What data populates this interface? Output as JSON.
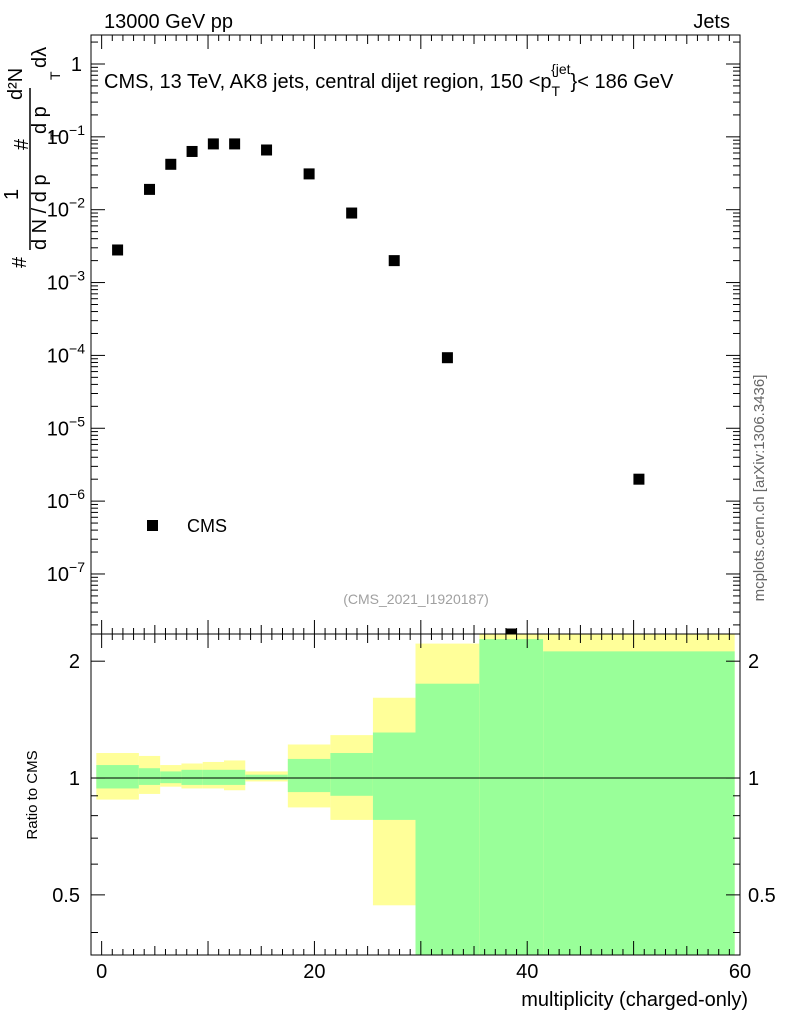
{
  "header": {
    "energy_label": "13000 GeV pp",
    "category_label": "Jets",
    "side_label": "mcplots.cern.ch [arXiv:1306.3436]",
    "analysis_id": "(CMS_2021_I1920187)"
  },
  "chart_data": [
    {
      "type": "scatter",
      "panel": "main",
      "title": "CMS, 13 TeV, AK8 jets, central dijet region, 150 < p_T^{jet} < 186 GeV",
      "title_parts": {
        "prefix": "CMS, 13 TeV, AK8 jets, central dijet region, 150 <p",
        "sub": "T",
        "sup": "{jet",
        "suffix": "}< 186 GeV"
      },
      "ylabel": "1/(dN/dp_T) d²N/(dp_T dλ)",
      "ylabel_parts": {
        "one": "1",
        "hash": "#",
        "den": "d N / d p",
        "num": "d²N",
        "den2": "d p",
        "dlambda": "dλ",
        "T": "T"
      },
      "yscale": "log",
      "ylim": [
        1.5e-08,
        2.5
      ],
      "xlim": [
        -1,
        60
      ],
      "legend": {
        "label": "CMS",
        "placement": "bottom-left"
      },
      "x": [
        1.5,
        4.5,
        6.5,
        8.5,
        10.5,
        12.5,
        15.5,
        19.5,
        23.5,
        27.5,
        32.5,
        38.5,
        50.5
      ],
      "y": [
        0.0028,
        0.019,
        0.042,
        0.063,
        0.08,
        0.08,
        0.066,
        0.031,
        0.009,
        0.002,
        9.3e-05,
        1.2e-08,
        2e-06
      ],
      "ytick_labels": [
        {
          "value": 1,
          "base": "1",
          "exp": ""
        },
        {
          "value": 0.1,
          "base": "10",
          "exp": "−1"
        },
        {
          "value": 0.01,
          "base": "10",
          "exp": "−2"
        },
        {
          "value": 0.001,
          "base": "10",
          "exp": "−3"
        },
        {
          "value": 0.0001,
          "base": "10",
          "exp": "−4"
        },
        {
          "value": 1e-05,
          "base": "10",
          "exp": "−5"
        },
        {
          "value": 1e-06,
          "base": "10",
          "exp": "−6"
        },
        {
          "value": 1e-07,
          "base": "10",
          "exp": "−7"
        }
      ]
    },
    {
      "type": "area",
      "panel": "ratio",
      "ylabel": "Ratio to CMS",
      "xlabel": "multiplicity (charged-only)",
      "xlim": [
        -1,
        60
      ],
      "ylim": [
        0.35,
        2.35
      ],
      "reference_line": 1,
      "ytick_labels": [
        "0.5",
        "1",
        "2"
      ],
      "ytick_values": [
        0.5,
        1,
        2
      ],
      "xtick_labels": [
        "0",
        "20",
        "40",
        "60"
      ],
      "xtick_values": [
        0,
        20,
        40,
        60
      ],
      "bins": [
        {
          "x0": -0.5,
          "x1": 3.5,
          "yellow": [
            0.88,
            1.16
          ],
          "green": [
            0.94,
            1.08
          ]
        },
        {
          "x0": 3.5,
          "x1": 5.5,
          "yellow": [
            0.91,
            1.14
          ],
          "green": [
            0.96,
            1.06
          ]
        },
        {
          "x0": 5.5,
          "x1": 7.5,
          "yellow": [
            0.95,
            1.08
          ],
          "green": [
            0.97,
            1.04
          ]
        },
        {
          "x0": 7.5,
          "x1": 9.5,
          "yellow": [
            0.94,
            1.09
          ],
          "green": [
            0.96,
            1.05
          ]
        },
        {
          "x0": 9.5,
          "x1": 11.5,
          "yellow": [
            0.94,
            1.1
          ],
          "green": [
            0.96,
            1.05
          ]
        },
        {
          "x0": 11.5,
          "x1": 13.5,
          "yellow": [
            0.93,
            1.11
          ],
          "green": [
            0.96,
            1.05
          ]
        },
        {
          "x0": 13.5,
          "x1": 17.5,
          "yellow": [
            0.98,
            1.04
          ],
          "green": [
            0.99,
            1.02
          ]
        },
        {
          "x0": 17.5,
          "x1": 21.5,
          "yellow": [
            0.84,
            1.22
          ],
          "green": [
            0.92,
            1.12
          ]
        },
        {
          "x0": 21.5,
          "x1": 25.5,
          "yellow": [
            0.78,
            1.29
          ],
          "green": [
            0.9,
            1.16
          ]
        },
        {
          "x0": 25.5,
          "x1": 29.5,
          "yellow": [
            0.47,
            1.61
          ],
          "green": [
            0.78,
            1.31
          ]
        },
        {
          "x0": 29.5,
          "x1": 35.5,
          "yellow": [
            0.35,
            2.22
          ],
          "green": [
            0.35,
            1.75
          ]
        },
        {
          "x0": 35.5,
          "x1": 41.5,
          "yellow": [
            0.35,
            2.35
          ],
          "green": [
            0.35,
            2.28
          ]
        },
        {
          "x0": 41.5,
          "x1": 59.5,
          "yellow": [
            0.35,
            2.35
          ],
          "green": [
            0.35,
            2.12
          ]
        }
      ]
    }
  ],
  "colors": {
    "yellow_band": "#ffff99",
    "green_band": "#99ff99",
    "marker": "#000000"
  }
}
